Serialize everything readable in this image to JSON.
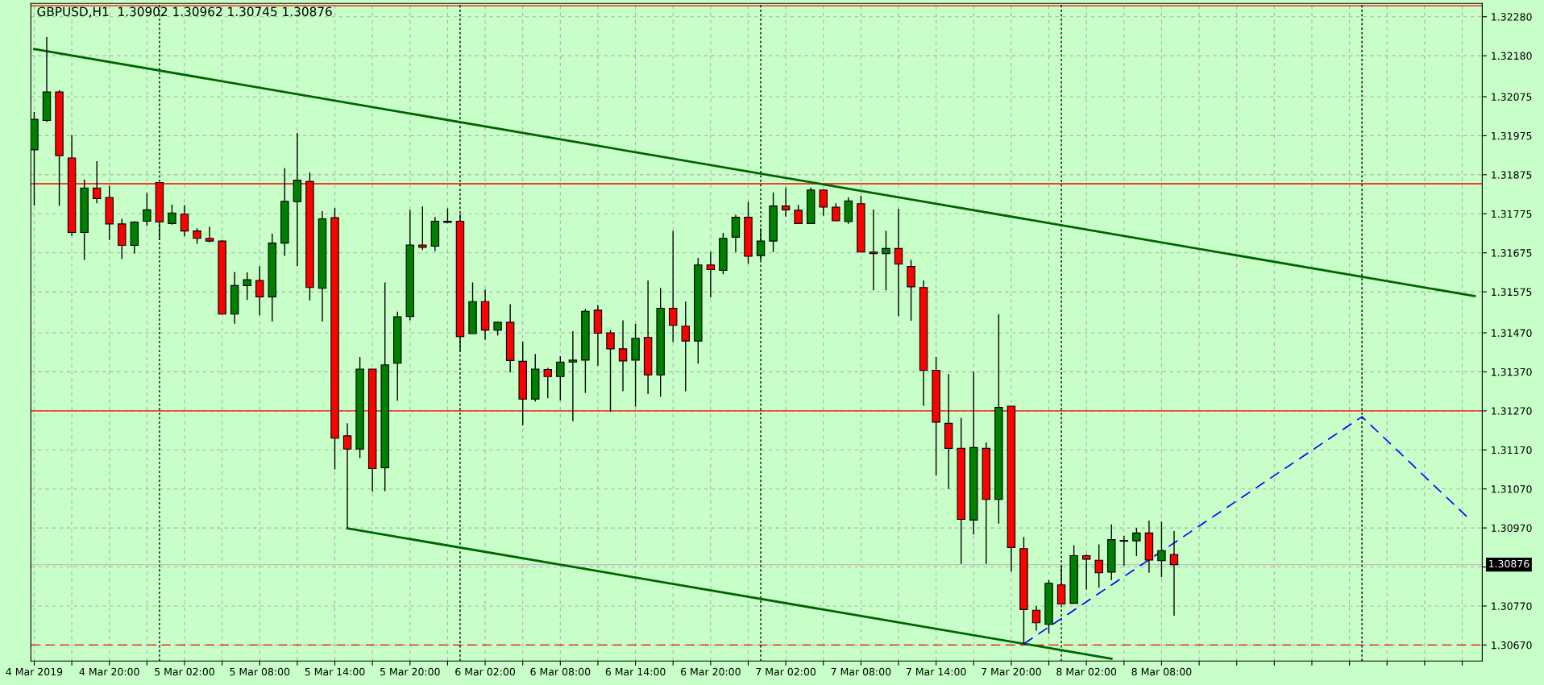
{
  "chart_data": {
    "type": "candlestick",
    "title": "GBPUSD,H1  1.30902 1.30962 1.30745 1.30876",
    "colors": [
      "#008000",
      "#008000",
      "#ff0000",
      "#ff0000",
      "#008000",
      "#ff0000",
      "#ff0000",
      "#ff0000",
      "#008000",
      "#008000",
      "#ff0000",
      "#008000",
      "#ff0000",
      "#ff0000",
      "#ff0000",
      "#ff0000",
      "#008000",
      "#008000",
      "#ff0000",
      "#008000",
      "#008000",
      "#008000",
      "#ff0000",
      "#008000",
      "#ff0000",
      "#ff0000",
      "#008000",
      "#ff0000",
      "#008000",
      "#008000",
      "#008000",
      "#ff0000",
      "#008000",
      "#008000",
      "#ff0000",
      "#008000",
      "#ff0000",
      "#008000",
      "#ff0000",
      "#ff0000",
      "#008000",
      "#ff0000",
      "#008000",
      "#008000",
      "#008000",
      "#ff0000",
      "#ff0000",
      "#ff0000",
      "#008000",
      "#ff0000",
      "#008000",
      "#ff0000",
      "#ff0000",
      "#008000",
      "#ff0000",
      "#008000",
      "#008000",
      "#ff0000",
      "#008000",
      "#008000",
      "#ff0000",
      "#ff0000",
      "#008000",
      "#ff0000",
      "#ff0000",
      "#008000",
      "#ff0000",
      "#ff0000",
      "#008000",
      "#ff0000",
      "#ff0000",
      "#ff0000",
      "#ff0000",
      "#ff0000",
      "#ff0000",
      "#008000",
      "#ff0000",
      "#008000",
      "#ff0000",
      "#ff0000",
      "#ff0000",
      "#008000",
      "#ff0000",
      "#008000",
      "#ff0000",
      "#ff0000",
      "#008000",
      "#008000",
      "#008000",
      "#ff0000",
      "#008000",
      "#ff0000"
    ],
    "x": [
      "2019-03-04T14:00",
      "2019-03-04T15:00",
      "2019-03-04T16:00",
      "2019-03-04T17:00",
      "2019-03-04T18:00",
      "2019-03-04T19:00",
      "2019-03-04T20:00",
      "2019-03-04T21:00",
      "2019-03-04T22:00",
      "2019-03-04T23:00",
      "2019-03-05T00:00",
      "2019-03-05T01:00",
      "2019-03-05T02:00",
      "2019-03-05T03:00",
      "2019-03-05T04:00",
      "2019-03-05T05:00",
      "2019-03-05T06:00",
      "2019-03-05T07:00",
      "2019-03-05T08:00",
      "2019-03-05T09:00",
      "2019-03-05T10:00",
      "2019-03-05T11:00",
      "2019-03-05T12:00",
      "2019-03-05T13:00",
      "2019-03-05T14:00",
      "2019-03-05T15:00",
      "2019-03-05T16:00",
      "2019-03-05T17:00",
      "2019-03-05T18:00",
      "2019-03-05T19:00",
      "2019-03-05T20:00",
      "2019-03-05T21:00",
      "2019-03-05T22:00",
      "2019-03-05T23:00",
      "2019-03-06T00:00",
      "2019-03-06T01:00",
      "2019-03-06T02:00",
      "2019-03-06T03:00",
      "2019-03-06T04:00",
      "2019-03-06T05:00",
      "2019-03-06T06:00",
      "2019-03-06T07:00",
      "2019-03-06T08:00",
      "2019-03-06T09:00",
      "2019-03-06T10:00",
      "2019-03-06T11:00",
      "2019-03-06T12:00",
      "2019-03-06T13:00",
      "2019-03-06T14:00",
      "2019-03-06T15:00",
      "2019-03-06T16:00",
      "2019-03-06T17:00",
      "2019-03-06T18:00",
      "2019-03-06T19:00",
      "2019-03-06T20:00",
      "2019-03-06T21:00",
      "2019-03-06T22:00",
      "2019-03-06T23:00",
      "2019-03-07T00:00",
      "2019-03-07T01:00",
      "2019-03-07T02:00",
      "2019-03-07T03:00",
      "2019-03-07T04:00",
      "2019-03-07T05:00",
      "2019-03-07T06:00",
      "2019-03-07T07:00",
      "2019-03-07T08:00",
      "2019-03-07T09:00",
      "2019-03-07T10:00",
      "2019-03-07T11:00",
      "2019-03-07T12:00",
      "2019-03-07T13:00",
      "2019-03-07T14:00",
      "2019-03-07T15:00",
      "2019-03-07T16:00",
      "2019-03-07T17:00",
      "2019-03-07T18:00",
      "2019-03-07T19:00",
      "2019-03-07T20:00",
      "2019-03-07T21:00",
      "2019-03-07T22:00",
      "2019-03-07T23:00",
      "2019-03-08T00:00",
      "2019-03-08T01:00",
      "2019-03-08T02:00",
      "2019-03-08T03:00",
      "2019-03-08T04:00",
      "2019-03-08T05:00",
      "2019-03-08T06:00",
      "2019-03-08T07:00",
      "2019-03-08T08:00",
      "2019-03-08T09:00"
    ],
    "ohlc": [
      [
        1.31939,
        1.32036,
        1.31796,
        1.32017
      ],
      [
        1.32014,
        1.32228,
        1.3201,
        1.32087
      ],
      [
        1.32087,
        1.32092,
        1.31795,
        1.31924
      ],
      [
        1.31918,
        1.31977,
        1.31719,
        1.31727
      ],
      [
        1.31727,
        1.31863,
        1.31657,
        1.31841
      ],
      [
        1.31841,
        1.3191,
        1.31802,
        1.31814
      ],
      [
        1.31817,
        1.31847,
        1.31708,
        1.31749
      ],
      [
        1.31749,
        1.31762,
        1.31659,
        1.31694
      ],
      [
        1.31694,
        1.31756,
        1.31673,
        1.31754
      ],
      [
        1.31756,
        1.31828,
        1.31744,
        1.31785
      ],
      [
        1.31855,
        1.31855,
        1.31708,
        1.31754
      ],
      [
        1.3175,
        1.31799,
        1.31747,
        1.31777
      ],
      [
        1.31774,
        1.31797,
        1.31717,
        1.31731
      ],
      [
        1.31731,
        1.31738,
        1.31698,
        1.31712
      ],
      [
        1.31712,
        1.31742,
        1.31702,
        1.31705
      ],
      [
        1.31705,
        1.31708,
        1.31518,
        1.31518
      ],
      [
        1.31518,
        1.31626,
        1.31493,
        1.31591
      ],
      [
        1.31591,
        1.31625,
        1.31554,
        1.31606
      ],
      [
        1.31604,
        1.31641,
        1.31515,
        1.31562
      ],
      [
        1.31562,
        1.31724,
        1.31499,
        1.317
      ],
      [
        1.317,
        1.31892,
        1.31667,
        1.31807
      ],
      [
        1.31806,
        1.31982,
        1.31641,
        1.31861
      ],
      [
        1.31858,
        1.31881,
        1.31553,
        1.31586
      ],
      [
        1.31584,
        1.31782,
        1.31499,
        1.31762
      ],
      [
        1.31765,
        1.3179,
        1.3112,
        1.312
      ],
      [
        1.31206,
        1.31238,
        1.30969,
        1.31172
      ],
      [
        1.31172,
        1.31408,
        1.31149,
        1.31377
      ],
      [
        1.31377,
        1.31377,
        1.31063,
        1.31122
      ],
      [
        1.31124,
        1.31599,
        1.31064,
        1.31388
      ],
      [
        1.31392,
        1.31524,
        1.31296,
        1.31511
      ],
      [
        1.31512,
        1.31785,
        1.31502,
        1.31695
      ],
      [
        1.31695,
        1.31794,
        1.31682,
        1.31689
      ],
      [
        1.31692,
        1.31767,
        1.31679,
        1.31756
      ],
      [
        1.31753,
        1.31789,
        1.31751,
        1.31756
      ],
      [
        1.31756,
        1.31774,
        1.31423,
        1.3146
      ],
      [
        1.31468,
        1.31599,
        1.31468,
        1.3155
      ],
      [
        1.3155,
        1.31581,
        1.31452,
        1.31477
      ],
      [
        1.31477,
        1.31499,
        1.31463,
        1.31497
      ],
      [
        1.31497,
        1.31543,
        1.31368,
        1.31399
      ],
      [
        1.31397,
        1.31448,
        1.31233,
        1.313
      ],
      [
        1.313,
        1.31416,
        1.31294,
        1.31377
      ],
      [
        1.31376,
        1.3138,
        1.31302,
        1.31358
      ],
      [
        1.31358,
        1.3141,
        1.31297,
        1.31395
      ],
      [
        1.31395,
        1.31474,
        1.31244,
        1.314
      ],
      [
        1.314,
        1.31531,
        1.31316,
        1.31525
      ],
      [
        1.31528,
        1.31541,
        1.31386,
        1.31469
      ],
      [
        1.3147,
        1.31477,
        1.31268,
        1.31429
      ],
      [
        1.31429,
        1.31502,
        1.3132,
        1.31398
      ],
      [
        1.314,
        1.31493,
        1.31281,
        1.31456
      ],
      [
        1.31458,
        1.31604,
        1.31313,
        1.31362
      ],
      [
        1.31362,
        1.31585,
        1.31306,
        1.31533
      ],
      [
        1.31533,
        1.31731,
        1.31446,
        1.31489
      ],
      [
        1.31487,
        1.3155,
        1.3132,
        1.31449
      ],
      [
        1.31449,
        1.31662,
        1.31391,
        1.31644
      ],
      [
        1.31644,
        1.31678,
        1.31561,
        1.31632
      ],
      [
        1.3163,
        1.31726,
        1.3162,
        1.31712
      ],
      [
        1.31715,
        1.31772,
        1.31677,
        1.31766
      ],
      [
        1.31766,
        1.31806,
        1.31647,
        1.31666
      ],
      [
        1.31668,
        1.31738,
        1.31656,
        1.31705
      ],
      [
        1.31705,
        1.3183,
        1.31677,
        1.31795
      ],
      [
        1.31795,
        1.31842,
        1.31768,
        1.31785
      ],
      [
        1.31784,
        1.31798,
        1.3175,
        1.3175
      ],
      [
        1.3175,
        1.31842,
        1.3175,
        1.31836
      ],
      [
        1.31836,
        1.31838,
        1.3177,
        1.31792
      ],
      [
        1.31792,
        1.31802,
        1.31756,
        1.31757
      ],
      [
        1.31755,
        1.31817,
        1.31749,
        1.31808
      ],
      [
        1.31801,
        1.31821,
        1.31677,
        1.31677
      ],
      [
        1.31677,
        1.31786,
        1.31579,
        1.31673
      ],
      [
        1.31673,
        1.31731,
        1.31579,
        1.31686
      ],
      [
        1.31686,
        1.31788,
        1.31513,
        1.31646
      ],
      [
        1.3164,
        1.31657,
        1.31501,
        1.31588
      ],
      [
        1.31586,
        1.31604,
        1.31283,
        1.31374
      ],
      [
        1.31374,
        1.31408,
        1.31104,
        1.31241
      ],
      [
        1.31238,
        1.31364,
        1.3107,
        1.31174
      ],
      [
        1.31174,
        1.31252,
        1.30878,
        1.30992
      ],
      [
        1.3099,
        1.31371,
        1.30953,
        1.31176
      ],
      [
        1.31174,
        1.31189,
        1.30878,
        1.31043
      ],
      [
        1.31043,
        1.31518,
        1.30981,
        1.31279
      ],
      [
        1.31282,
        1.31282,
        1.30858,
        1.3092
      ],
      [
        1.30917,
        1.30947,
        1.30673,
        1.30761
      ],
      [
        1.30759,
        1.3077,
        1.30707,
        1.30727
      ],
      [
        1.30723,
        1.30836,
        1.30699,
        1.30828
      ],
      [
        1.30824,
        1.30873,
        1.30775,
        1.30775
      ],
      [
        1.30777,
        1.30926,
        1.30777,
        1.30899
      ],
      [
        1.30899,
        1.30902,
        1.30812,
        1.3089
      ],
      [
        1.30887,
        1.30928,
        1.30817,
        1.30855
      ],
      [
        1.30857,
        1.30979,
        1.30836,
        1.3094
      ],
      [
        1.30936,
        1.3095,
        1.30873,
        1.30938
      ],
      [
        1.30937,
        1.3097,
        1.30898,
        1.30957
      ],
      [
        1.30957,
        1.30989,
        1.30855,
        1.30888
      ],
      [
        1.30886,
        1.30986,
        1.30844,
        1.30912
      ],
      [
        1.30902,
        1.30962,
        1.30745,
        1.30876
      ]
    ],
    "series": [
      {
        "type": "line",
        "x": [
          "2019-03-04T14:00",
          "2019-03-09T09:00"
        ],
        "values": [
          1.32197,
          1.31564
        ],
        "color": "#006400",
        "line_style": "solid"
      },
      {
        "type": "line",
        "x": [
          "2019-03-05T15:00",
          "2019-03-08T04:00"
        ],
        "values": [
          1.30969,
          1.30635
        ],
        "color": "#006400",
        "line_style": "solid"
      },
      {
        "type": "line",
        "x": [
          "2019-03-07T21:00",
          "2019-03-09T00:00",
          "2019-03-09T08:30"
        ],
        "values": [
          1.30673,
          1.31255,
          1.30995
        ],
        "color": "#0000ff",
        "line_style": "dashed"
      }
    ],
    "ref_lines": [
      {
        "axis": "y",
        "value": 1.32308,
        "color": "#ff0000",
        "line_style": "solid"
      },
      {
        "axis": "y",
        "value": 1.31852,
        "color": "#ff0000",
        "line_style": "solid"
      },
      {
        "axis": "y",
        "value": 1.3127,
        "color": "#ff0000",
        "line_style": "solid"
      },
      {
        "axis": "y",
        "value": 1.3067,
        "color": "#ff0000",
        "line_style": "dashed"
      },
      {
        "axis": "y",
        "value": 1.30876,
        "label": "1.30876",
        "color": "#c0c0c0",
        "line_style": "solid"
      },
      {
        "axis": "x",
        "value": "2019-03-05T00:00",
        "color": "#000000",
        "line_style": "dotted"
      },
      {
        "axis": "x",
        "value": "2019-03-06T00:00",
        "color": "#000000",
        "line_style": "dotted"
      },
      {
        "axis": "x",
        "value": "2019-03-07T00:00",
        "color": "#000000",
        "line_style": "dotted"
      },
      {
        "axis": "x",
        "value": "2019-03-08T00:00",
        "color": "#000000",
        "line_style": "dotted"
      },
      {
        "axis": "x",
        "value": "2019-03-09T00:00",
        "color": "#000000",
        "line_style": "dotted"
      }
    ],
    "xlim": [
      "2019-03-04T13:44",
      "2019-03-09T09:36"
    ],
    "ylim": [
      1.30629,
      1.32314
    ],
    "xticks": [
      {
        "value": "2019-03-04T14:00",
        "label": "4 Mar 2019"
      },
      {
        "value": "2019-03-04T17:00",
        "label": null
      },
      {
        "value": "2019-03-04T20:00",
        "label": "4 Mar 20:00"
      },
      {
        "value": "2019-03-04T23:00",
        "label": null
      },
      {
        "value": "2019-03-05T02:00",
        "label": "5 Mar 02:00"
      },
      {
        "value": "2019-03-05T05:00",
        "label": null
      },
      {
        "value": "2019-03-05T08:00",
        "label": "5 Mar 08:00"
      },
      {
        "value": "2019-03-05T11:00",
        "label": null
      },
      {
        "value": "2019-03-05T14:00",
        "label": "5 Mar 14:00"
      },
      {
        "value": "2019-03-05T17:00",
        "label": null
      },
      {
        "value": "2019-03-05T20:00",
        "label": "5 Mar 20:00"
      },
      {
        "value": "2019-03-05T23:00",
        "label": null
      },
      {
        "value": "2019-03-06T02:00",
        "label": "6 Mar 02:00"
      },
      {
        "value": "2019-03-06T05:00",
        "label": null
      },
      {
        "value": "2019-03-06T08:00",
        "label": "6 Mar 08:00"
      },
      {
        "value": "2019-03-06T11:00",
        "label": null
      },
      {
        "value": "2019-03-06T14:00",
        "label": "6 Mar 14:00"
      },
      {
        "value": "2019-03-06T17:00",
        "label": null
      },
      {
        "value": "2019-03-06T20:00",
        "label": "6 Mar 20:00"
      },
      {
        "value": "2019-03-06T23:00",
        "label": null
      },
      {
        "value": "2019-03-07T02:00",
        "label": "7 Mar 02:00"
      },
      {
        "value": "2019-03-07T05:00",
        "label": null
      },
      {
        "value": "2019-03-07T08:00",
        "label": "7 Mar 08:00"
      },
      {
        "value": "2019-03-07T11:00",
        "label": null
      },
      {
        "value": "2019-03-07T14:00",
        "label": "7 Mar 14:00"
      },
      {
        "value": "2019-03-07T17:00",
        "label": null
      },
      {
        "value": "2019-03-07T20:00",
        "label": "7 Mar 20:00"
      },
      {
        "value": "2019-03-07T23:00",
        "label": null
      },
      {
        "value": "2019-03-08T02:00",
        "label": "8 Mar 02:00"
      },
      {
        "value": "2019-03-08T05:00",
        "label": null
      },
      {
        "value": "2019-03-08T08:00",
        "label": "8 Mar 08:00"
      },
      {
        "value": "2019-03-08T11:00",
        "label": null
      },
      {
        "value": "2019-03-08T14:00",
        "label": null
      },
      {
        "value": "2019-03-08T17:00",
        "label": null
      },
      {
        "value": "2019-03-08T20:00",
        "label": null
      },
      {
        "value": "2019-03-08T23:00",
        "label": null
      },
      {
        "value": "2019-03-09T02:00",
        "label": null
      },
      {
        "value": "2019-03-09T05:00",
        "label": null
      },
      {
        "value": "2019-03-09T08:00",
        "label": null
      }
    ],
    "yticks": [
      {
        "value": 1.3067,
        "label": "1.30670"
      },
      {
        "value": 1.3077,
        "label": "1.30770"
      },
      {
        "value": 1.3087,
        "label": null
      },
      {
        "value": 1.3097,
        "label": "1.30970"
      },
      {
        "value": 1.3107,
        "label": "1.31070"
      },
      {
        "value": 1.3117,
        "label": "1.31170"
      },
      {
        "value": 1.3127,
        "label": "1.31270"
      },
      {
        "value": 1.3137,
        "label": "1.31370"
      },
      {
        "value": 1.3147,
        "label": "1.31470"
      },
      {
        "value": 1.31575,
        "label": "1.31575"
      },
      {
        "value": 1.31675,
        "label": "1.31675"
      },
      {
        "value": 1.31775,
        "label": "1.31775"
      },
      {
        "value": 1.31875,
        "label": "1.31875"
      },
      {
        "value": 1.31975,
        "label": "1.31975"
      },
      {
        "value": 1.32075,
        "label": "1.32075"
      },
      {
        "value": 1.3218,
        "label": "1.32180"
      },
      {
        "value": 1.3228,
        "label": "1.32280"
      }
    ],
    "grid": true
  }
}
